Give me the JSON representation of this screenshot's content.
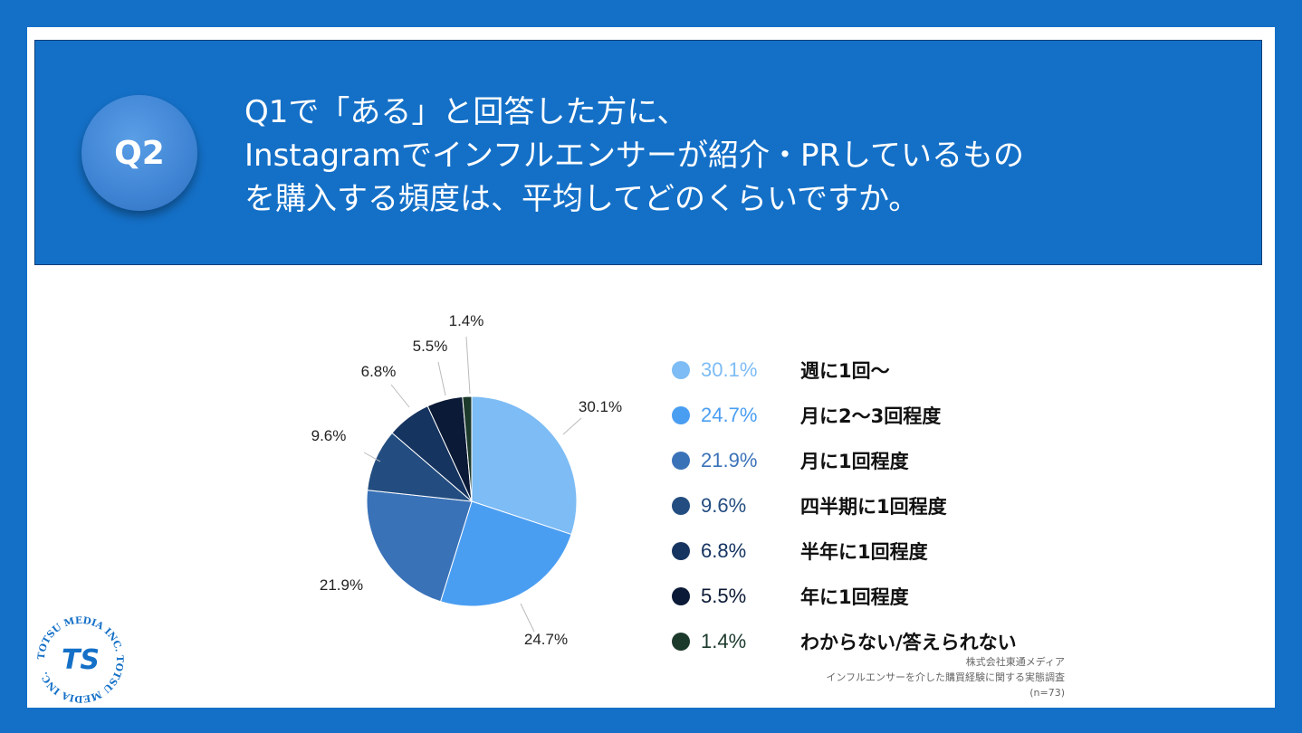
{
  "badge": "Q2",
  "question_lines": [
    "Q1で「ある」と回答した方に、",
    "Instagramでインフルエンサーが紹介・PRしているもの",
    "を購入する頻度は、平均してどのくらいですか。"
  ],
  "chart_data": {
    "type": "pie",
    "slices": [
      {
        "label": "週に1回〜",
        "value": 30.1,
        "display": "30.1%",
        "color": "#7dbcf5"
      },
      {
        "label": "月に2〜3回程度",
        "value": 24.7,
        "display": "24.7%",
        "color": "#4a9ef2"
      },
      {
        "label": "月に1回程度",
        "value": 21.9,
        "display": "21.9%",
        "color": "#3a72b8"
      },
      {
        "label": "四半期に1回程度",
        "value": 9.6,
        "display": "9.6%",
        "color": "#234d80"
      },
      {
        "label": "半年に1回程度",
        "value": 6.8,
        "display": "6.8%",
        "color": "#163460"
      },
      {
        "label": "年に1回程度",
        "value": 5.5,
        "display": "5.5%",
        "color": "#0b1a36"
      },
      {
        "label": "わからない/答えられない",
        "value": 1.4,
        "display": "1.4%",
        "color": "#1c3a2c"
      }
    ],
    "legend_position": "right"
  },
  "source": {
    "line1": "株式会社東通メディア",
    "line2": "インフルエンサーを介した購買経験に関する実態調査",
    "line3": "(n=73)"
  },
  "logo": {
    "ring_text": "TOTSU MEDIA INC. TOTSU MEDIA INC.",
    "mark": "TS",
    "color": "#1470c7"
  }
}
